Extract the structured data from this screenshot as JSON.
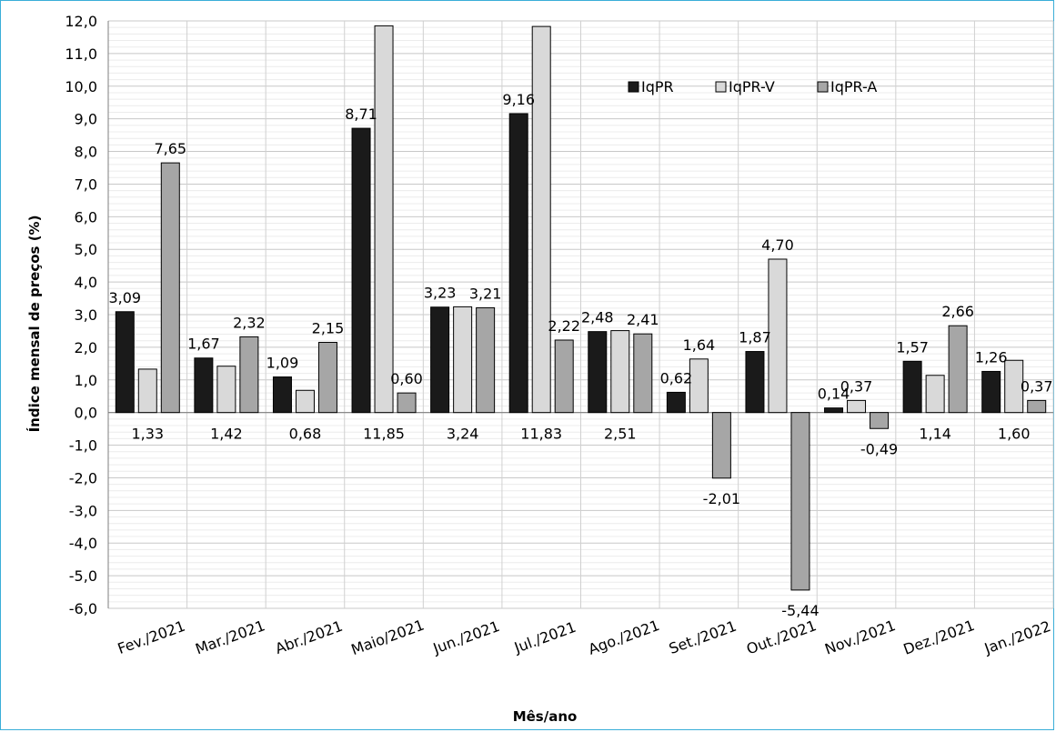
{
  "chart_data": {
    "type": "bar",
    "title": "",
    "xlabel": "Mês/ano",
    "ylabel": "Índice mensal de preços (%)",
    "ylim": [
      -6,
      12
    ],
    "ytick_step": 1,
    "ytick_labels": [
      "-6,0",
      "-5,0",
      "-4,0",
      "-3,0",
      "-2,0",
      "-1,0",
      "0,0",
      "1,0",
      "2,0",
      "3,0",
      "4,0",
      "5,0",
      "6,0",
      "7,0",
      "8,0",
      "9,0",
      "10,0",
      "11,0",
      "12,0"
    ],
    "categories": [
      "Fev./2021",
      "Mar./2021",
      "Abr./2021",
      "Maio/2021",
      "Jun./2021",
      "Jul./2021",
      "Ago./2021",
      "Set./2021",
      "Out./2021",
      "Nov./2021",
      "Dez./2021",
      "Jan./2022"
    ],
    "series": [
      {
        "name": "IqPR",
        "color": "#1a1a1a",
        "values": [
          3.09,
          1.67,
          1.09,
          8.71,
          3.23,
          9.16,
          2.48,
          0.62,
          1.87,
          0.14,
          1.57,
          1.26
        ],
        "labels": [
          "3,09",
          "1,67",
          "1,09",
          "8,71",
          "3,23",
          "9,16",
          "2,48",
          "0,62",
          "1,87",
          "0,14",
          "1,57",
          "1,26"
        ]
      },
      {
        "name": "IqPR-V",
        "color": "#d9d9d9",
        "values": [
          1.33,
          1.42,
          0.68,
          11.85,
          3.24,
          11.83,
          2.51,
          1.64,
          4.7,
          0.37,
          1.14,
          1.6
        ],
        "labels": [
          "1,33",
          "1,42",
          "0,68",
          "11,85",
          "3,24",
          "11,83",
          "2,51",
          "1,64",
          "4,70",
          "0,37",
          "1,14",
          "1,60"
        ]
      },
      {
        "name": "IqPR-A",
        "color": "#a6a6a6",
        "values": [
          7.65,
          2.32,
          2.15,
          0.6,
          3.21,
          2.22,
          2.41,
          -2.01,
          -5.44,
          -0.49,
          2.66,
          0.37
        ],
        "labels": [
          "7,65",
          "2,32",
          "2,15",
          "0,60",
          "3,21",
          "2,22",
          "2,41",
          "-2,01",
          "-5,44",
          "-0,49",
          "2,66",
          "0,37"
        ]
      }
    ],
    "legend_position": "top-right",
    "grid": true
  }
}
